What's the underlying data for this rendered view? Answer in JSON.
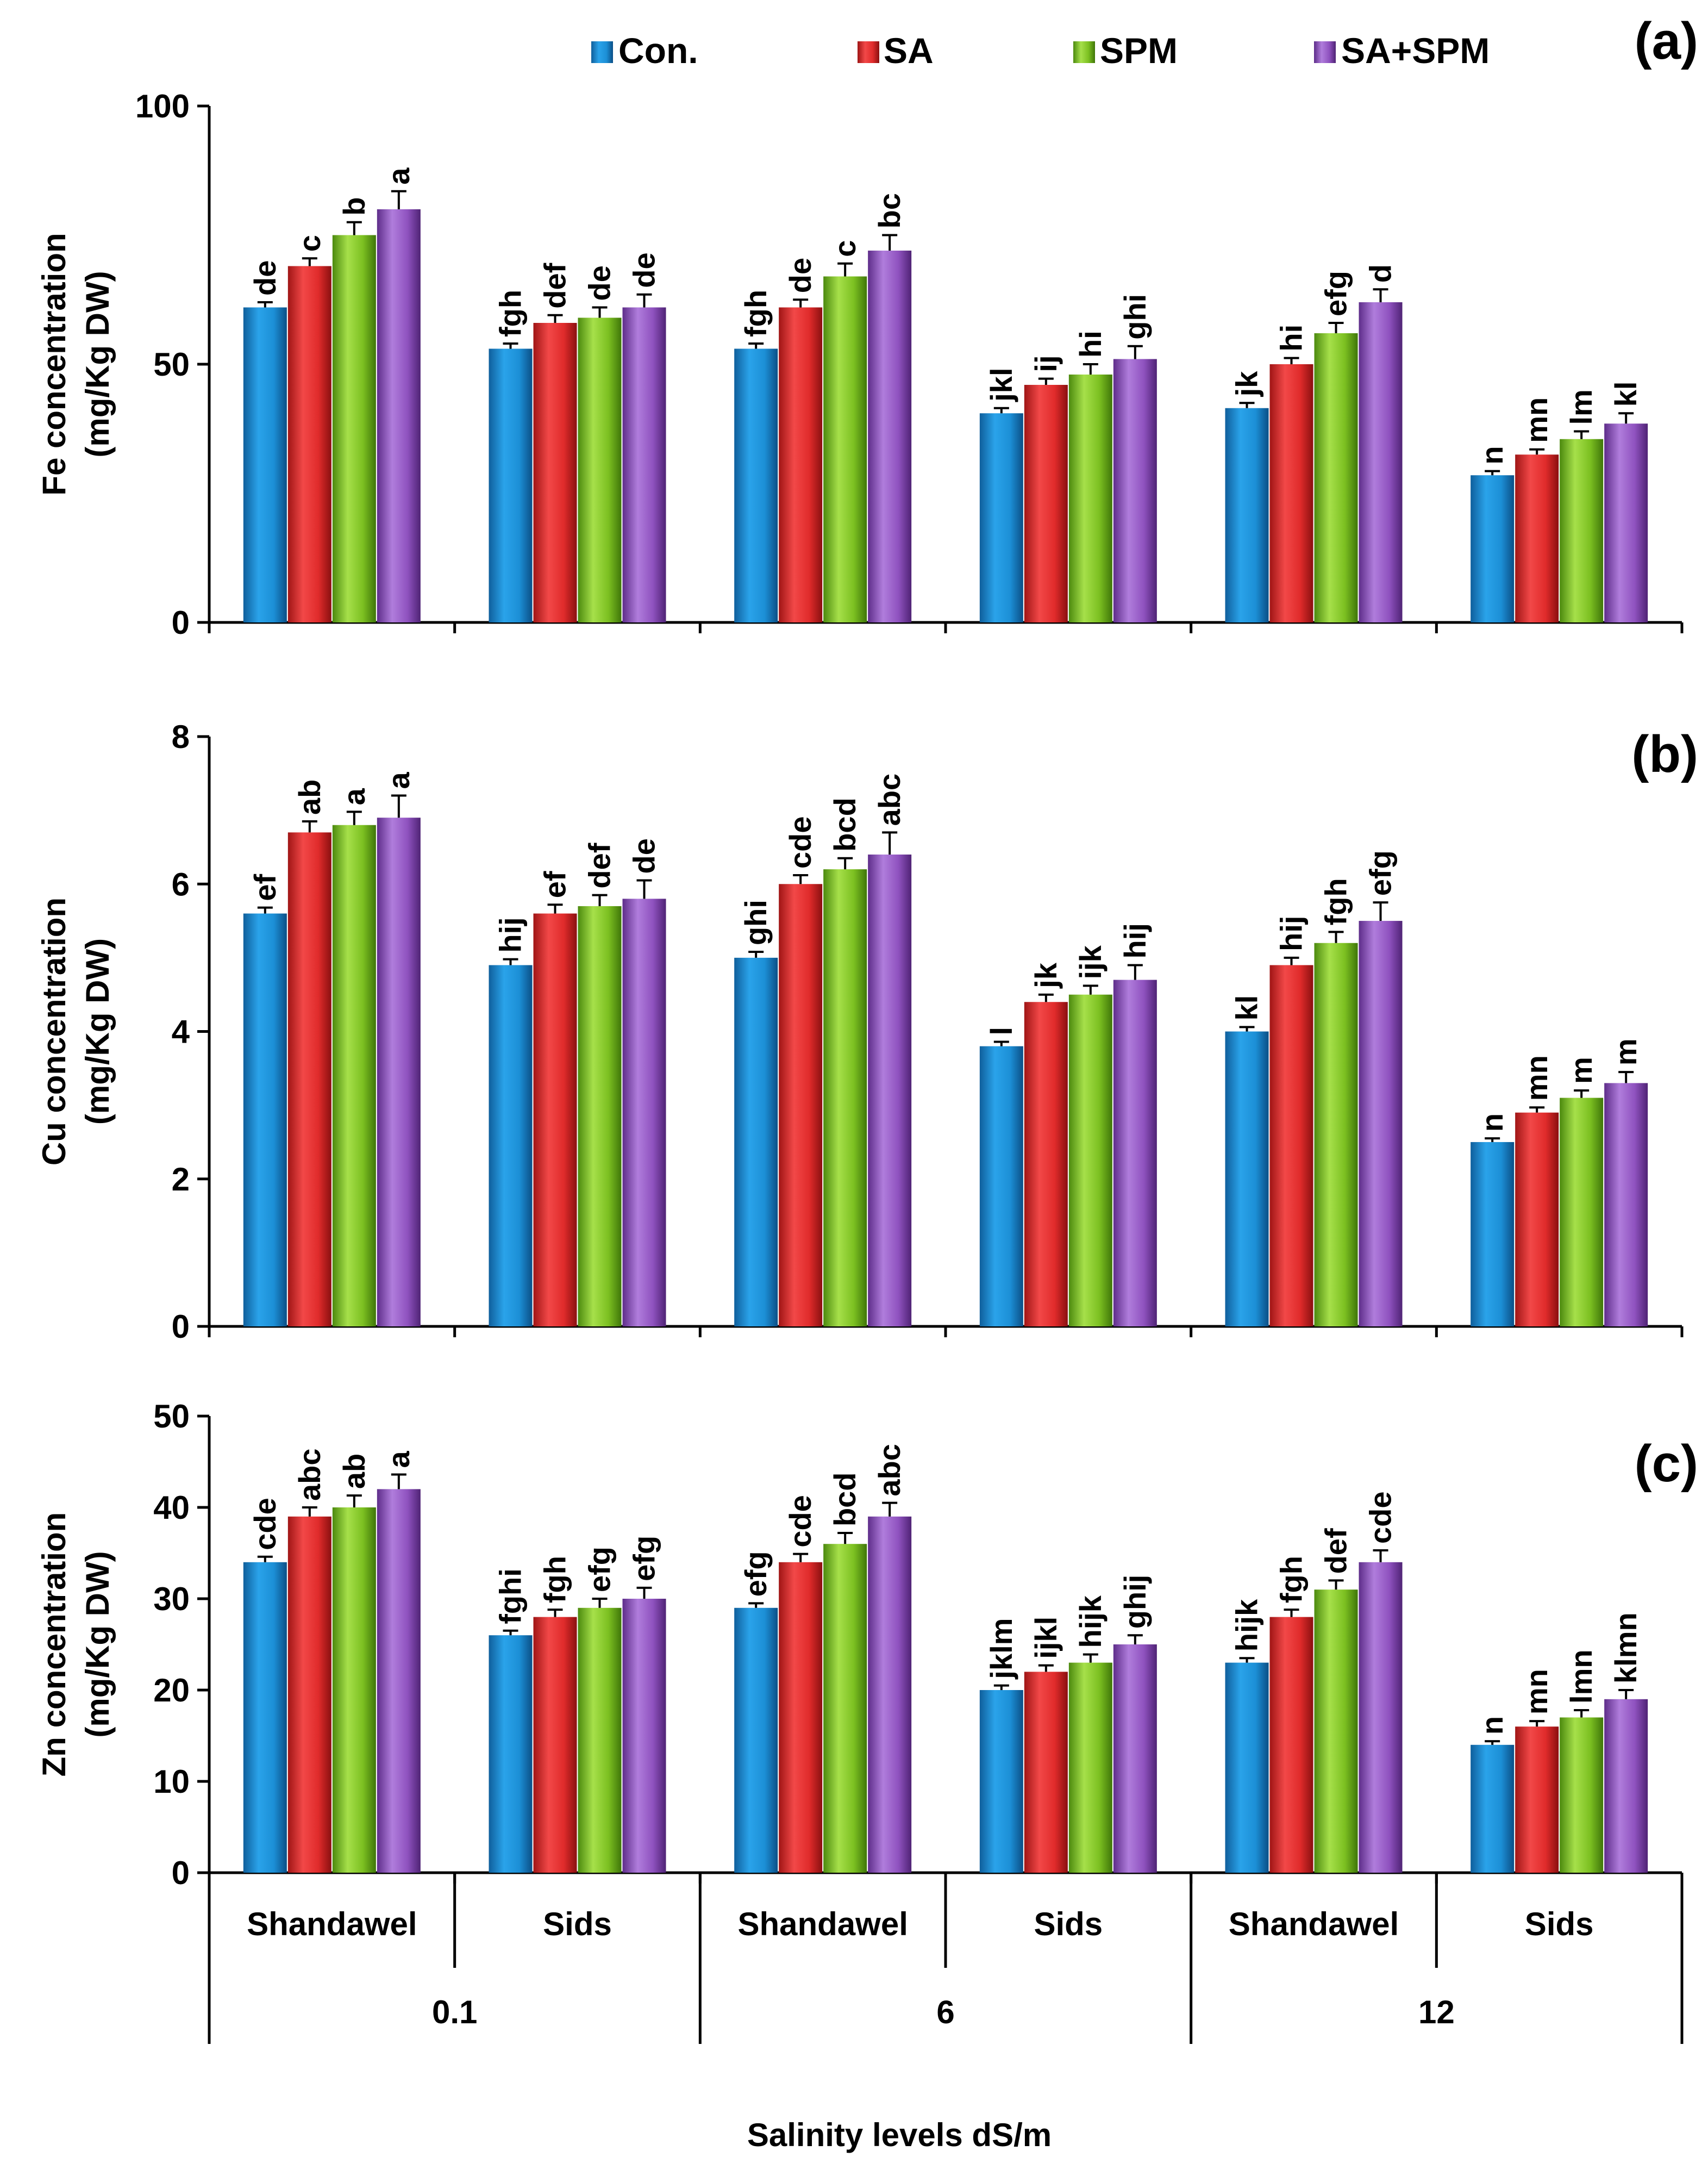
{
  "chart_data": [
    {
      "type": "bar",
      "panel_label": "(a)",
      "ylabel_line1": "Fe concentration",
      "ylabel_line2": "(mg/Kg DW)",
      "ylim": [
        0,
        100
      ],
      "yticks": [
        0,
        50,
        100
      ],
      "series": [
        {
          "name": "Con.",
          "values": [
            61,
            53,
            53,
            40.5,
            41.5,
            28.5
          ],
          "errors": [
            1.0,
            1.0,
            1.0,
            1.0,
            1.0,
            0.8
          ],
          "letters": [
            "de",
            "fgh",
            "fgh",
            "jkl",
            "jk",
            "n"
          ]
        },
        {
          "name": "SA",
          "values": [
            69,
            58,
            61,
            46,
            50,
            32.5
          ],
          "errors": [
            1.5,
            1.5,
            1.5,
            1.2,
            1.2,
            1.0
          ],
          "letters": [
            "c",
            "def",
            "de",
            "ij",
            "hi",
            "mn"
          ]
        },
        {
          "name": "SPM",
          "values": [
            75,
            59,
            67,
            48,
            56,
            35.5
          ],
          "errors": [
            2.5,
            2.0,
            2.5,
            2.0,
            2.0,
            1.5
          ],
          "letters": [
            "b",
            "de",
            "c",
            "hi",
            "efg",
            "lm"
          ]
        },
        {
          "name": "SA+SPM",
          "values": [
            80,
            61,
            72,
            51,
            62,
            38.5
          ],
          "errors": [
            3.5,
            2.5,
            3.0,
            2.5,
            2.5,
            2.0
          ],
          "letters": [
            "a",
            "de",
            "bc",
            "ghi",
            "d",
            "kl"
          ]
        }
      ]
    },
    {
      "type": "bar",
      "panel_label": "(b)",
      "ylabel_line1": "Cu concentration",
      "ylabel_line2": "(mg/Kg DW)",
      "ylim": [
        0,
        8
      ],
      "yticks": [
        0,
        2,
        4,
        6,
        8
      ],
      "series": [
        {
          "name": "Con.",
          "values": [
            5.6,
            4.9,
            5.0,
            3.8,
            4.0,
            2.5
          ],
          "errors": [
            0.08,
            0.08,
            0.08,
            0.06,
            0.06,
            0.05
          ],
          "letters": [
            "ef",
            "hij",
            "ghi",
            "l",
            "kl",
            "n"
          ]
        },
        {
          "name": "SA",
          "values": [
            6.7,
            5.6,
            6.0,
            4.4,
            4.9,
            2.9
          ],
          "errors": [
            0.15,
            0.12,
            0.12,
            0.1,
            0.1,
            0.07
          ],
          "letters": [
            "ab",
            "ef",
            "cde",
            "jk",
            "hij",
            "mn"
          ]
        },
        {
          "name": "SPM",
          "values": [
            6.8,
            5.7,
            6.2,
            4.5,
            5.2,
            3.1
          ],
          "errors": [
            0.18,
            0.15,
            0.15,
            0.12,
            0.15,
            0.1
          ],
          "letters": [
            "a",
            "def",
            "bcd",
            "ijk",
            "fgh",
            "m"
          ]
        },
        {
          "name": "SA+SPM",
          "values": [
            6.9,
            5.8,
            6.4,
            4.7,
            5.5,
            3.3
          ],
          "errors": [
            0.3,
            0.25,
            0.3,
            0.2,
            0.25,
            0.15
          ],
          "letters": [
            "a",
            "de",
            "abc",
            "hij",
            "efg",
            "m"
          ]
        }
      ]
    },
    {
      "type": "bar",
      "panel_label": "(c)",
      "ylabel_line1": "Zn concentration",
      "ylabel_line2": "(mg/Kg DW)",
      "ylim": [
        0,
        50
      ],
      "yticks": [
        0,
        10,
        20,
        30,
        40,
        50
      ],
      "series": [
        {
          "name": "Con.",
          "values": [
            34,
            26,
            29,
            20,
            23,
            14
          ],
          "errors": [
            0.6,
            0.5,
            0.5,
            0.5,
            0.5,
            0.4
          ],
          "letters": [
            "cde",
            "fghi",
            "efg",
            "jklm",
            "hijk",
            "n"
          ]
        },
        {
          "name": "SA",
          "values": [
            39,
            28,
            34,
            22,
            28,
            16
          ],
          "errors": [
            1.0,
            0.8,
            0.9,
            0.7,
            0.8,
            0.6
          ],
          "letters": [
            "abc",
            "fgh",
            "cde",
            "ijkl",
            "fgh",
            "mn"
          ]
        },
        {
          "name": "SPM",
          "values": [
            40,
            29,
            36,
            23,
            31,
            17
          ],
          "errors": [
            1.3,
            1.0,
            1.2,
            0.9,
            1.0,
            0.8
          ],
          "letters": [
            "ab",
            "efg",
            "bcd",
            "hijk",
            "def",
            "lmn"
          ]
        },
        {
          "name": "SA+SPM",
          "values": [
            42,
            30,
            39,
            25,
            34,
            19
          ],
          "errors": [
            1.6,
            1.2,
            1.5,
            1.0,
            1.3,
            1.0
          ],
          "letters": [
            "a",
            "efg",
            "abc",
            "ghij",
            "cde",
            "klmn"
          ]
        }
      ]
    }
  ],
  "legend": [
    {
      "name": "Con.",
      "color": "#1c8fd6"
    },
    {
      "name": "SA",
      "color": "#e02b2b"
    },
    {
      "name": "SPM",
      "color": "#7cc021"
    },
    {
      "name": "SA+SPM",
      "color": "#8f52bf"
    }
  ],
  "categories": [
    "Shandawel",
    "Sids",
    "Shandawel",
    "Sids",
    "Shandawel",
    "Sids"
  ],
  "salinity_levels": [
    "0.1",
    "6",
    "12"
  ],
  "xlabel": "Salinity levels dS/m"
}
